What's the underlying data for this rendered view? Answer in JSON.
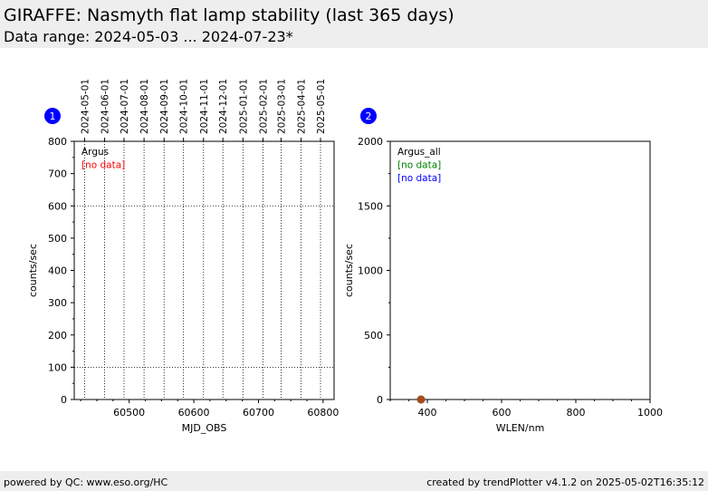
{
  "header": {
    "title": "GIRAFFE: Nasmyth flat lamp stability (last 365 days)",
    "subtitle": "Data range: 2024-05-03 ... 2024-07-23*"
  },
  "footer": {
    "left": "powered by QC: www.eso.org/HC",
    "right": "created by trendPlotter v4.1.2 on 2025-05-02T16:35:12"
  },
  "colors": {
    "badge": "#0000ff",
    "nodata_red": "#ff0000",
    "nodata_green": "#008000",
    "nodata_blue": "#0000ff"
  },
  "chart_data": [
    {
      "type": "scatter",
      "badge": "1",
      "xlabel": "MJD_OBS",
      "ylabel": "counts/sec",
      "xlim": [
        60415,
        60817
      ],
      "ylim": [
        0,
        800
      ],
      "xticks": [
        60500,
        60600,
        60700,
        60800
      ],
      "yticks": [
        0,
        100,
        200,
        300,
        400,
        500,
        600,
        700,
        800
      ],
      "hgrid": [
        100,
        600
      ],
      "top_axis": {
        "ticks": [
          {
            "x": 60431,
            "label": "2024-05-01"
          },
          {
            "x": 60462,
            "label": "2024-06-01"
          },
          {
            "x": 60492,
            "label": "2024-07-01"
          },
          {
            "x": 60523,
            "label": "2024-08-01"
          },
          {
            "x": 60554,
            "label": "2024-09-01"
          },
          {
            "x": 60584,
            "label": "2024-10-01"
          },
          {
            "x": 60615,
            "label": "2024-11-01"
          },
          {
            "x": 60645,
            "label": "2024-12-01"
          },
          {
            "x": 60676,
            "label": "2025-01-01"
          },
          {
            "x": 60707,
            "label": "2025-02-01"
          },
          {
            "x": 60735,
            "label": "2025-03-01"
          },
          {
            "x": 60766,
            "label": "2025-04-01"
          },
          {
            "x": 60796,
            "label": "2025-05-01"
          }
        ]
      },
      "legend": [
        {
          "text": "Argus",
          "color": "#000000"
        },
        {
          "text": "[no data]",
          "color": "#ff0000"
        }
      ],
      "series": []
    },
    {
      "type": "scatter",
      "badge": "2",
      "xlabel": "WLEN/nm",
      "ylabel": "counts/sec",
      "xlim": [
        300,
        1000
      ],
      "ylim": [
        0,
        2000
      ],
      "xticks": [
        400,
        600,
        800,
        1000
      ],
      "yticks": [
        0,
        500,
        1000,
        1500,
        2000
      ],
      "legend": [
        {
          "text": "Argus_all",
          "color": "#000000"
        },
        {
          "text": "[no data]",
          "color": "#008000"
        },
        {
          "text": "[no data]",
          "color": "#0000ff"
        }
      ],
      "series": [
        {
          "points": [
            {
              "x": 383,
              "y": 0
            }
          ],
          "color": "#008000"
        },
        {
          "points": [
            {
              "x": 383,
              "y": 0
            }
          ],
          "color": "#c04020"
        }
      ]
    }
  ]
}
